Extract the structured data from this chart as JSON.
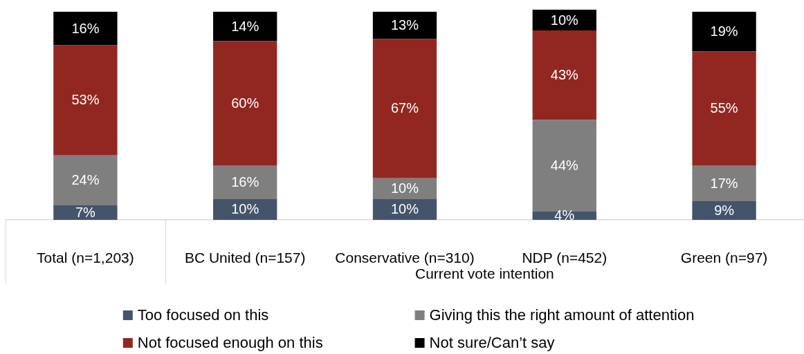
{
  "chart_data": {
    "type": "bar",
    "stacked": true,
    "categories": [
      "Total (n=1,203)",
      "BC United (n=157)",
      "Conservative (n=310)",
      "NDP (n=452)",
      "Green (n=97)"
    ],
    "xlabel": "Current vote intention",
    "series": [
      {
        "name": "Too focused on this",
        "color": "#44546a",
        "values": [
          7,
          10,
          10,
          4,
          9
        ],
        "value_labels": [
          "7%",
          "10%",
          "10%",
          "4%",
          "9%"
        ]
      },
      {
        "name": "Giving this the right amount of attention",
        "color": "#7f7f7f",
        "values": [
          24,
          16,
          10,
          44,
          17
        ],
        "value_labels": [
          "24%",
          "16%",
          "10%",
          "44%",
          "17%"
        ]
      },
      {
        "name": "Not focused enough on this",
        "color": "#922722",
        "values": [
          53,
          60,
          67,
          43,
          55
        ],
        "value_labels": [
          "53%",
          "60%",
          "67%",
          "43%",
          "55%"
        ]
      },
      {
        "name": "Not sure/Can’t say",
        "color": "#000000",
        "values": [
          16,
          14,
          13,
          10,
          19
        ],
        "value_labels": [
          "16%",
          "14%",
          "13%",
          "10%",
          "19%"
        ]
      }
    ],
    "ylim": [
      0,
      101
    ],
    "tick_labels": "x",
    "legend": "bottom"
  }
}
